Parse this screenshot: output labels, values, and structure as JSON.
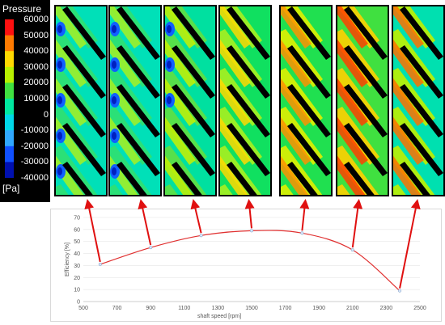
{
  "legend": {
    "title": "Pressure",
    "unit": "[Pa]",
    "ticks": [
      "60000",
      "50000",
      "40000",
      "30000",
      "20000",
      "10000",
      "0",
      "-10000",
      "-20000",
      "-30000",
      "-40000"
    ],
    "colors": [
      "#ff1010",
      "#ff7a00",
      "#ffd800",
      "#b8f000",
      "#40e040",
      "#00e8a0",
      "#00d8e8",
      "#30a8ff",
      "#1050ff",
      "#0010b0"
    ]
  },
  "panels": [
    {
      "label": "600",
      "style": "cavitation"
    },
    {
      "label": "900",
      "style": "cavitation"
    },
    {
      "label": "1200",
      "style": "mild"
    },
    {
      "label": "1500",
      "style": "bands"
    },
    {
      "label": "1800",
      "style": "bands-strong"
    },
    {
      "label": "2100",
      "style": "bands-red"
    },
    {
      "label": "2400",
      "style": "bands-red-left"
    }
  ],
  "chart_data": {
    "type": "line",
    "title": "",
    "xlabel": "shaft speed [rpm]",
    "ylabel": "Efficiency [%]",
    "xlim": [
      500,
      2500
    ],
    "ylim": [
      0,
      70
    ],
    "xticks": [
      "500",
      "700",
      "900",
      "1100",
      "1300",
      "1500",
      "1700",
      "1900",
      "2100",
      "2300",
      "2500"
    ],
    "yticks": [
      "0",
      "10",
      "20",
      "30",
      "40",
      "50",
      "60",
      "70"
    ],
    "grid": true,
    "series": [
      {
        "name": "",
        "color": "#e03030",
        "x": [
          600,
          900,
          1200,
          1500,
          1800,
          2100,
          2380
        ],
        "y": [
          31,
          45,
          55,
          59,
          57,
          43,
          9
        ]
      }
    ]
  }
}
